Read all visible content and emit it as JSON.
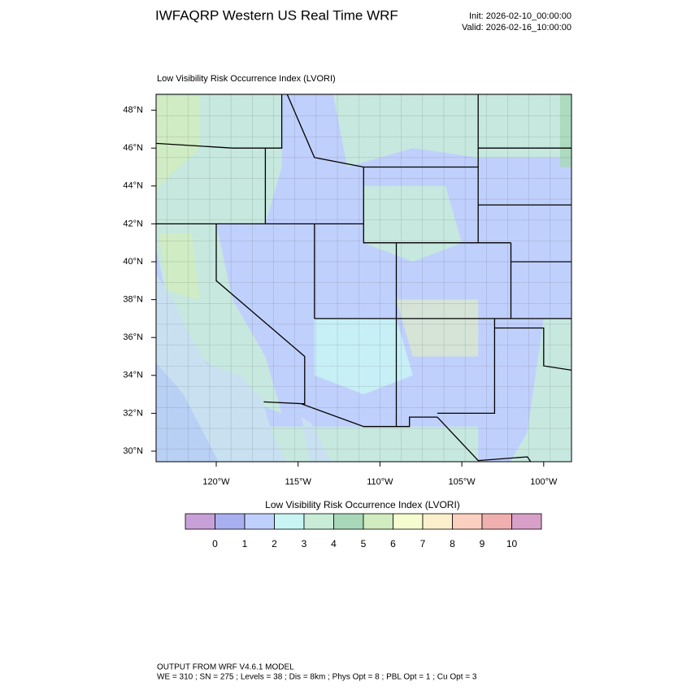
{
  "header": {
    "title": "IWFAQRP Western US Real Time WRF",
    "init": "Init: 2026-02-10_00:00:00",
    "valid": "Valid: 2026-02-16_10:00:00"
  },
  "map": {
    "subtitle": "Low Visibility Risk Occurrence Index   (LVORI)",
    "lat_labels": [
      "48°N",
      "46°N",
      "44°N",
      "42°N",
      "40°N",
      "38°N",
      "36°N",
      "34°N",
      "32°N",
      "30°N"
    ],
    "lon_labels": [
      "120°W",
      "115°W",
      "110°W",
      "105°W",
      "100°W"
    ]
  },
  "colorbar": {
    "title": "Low Visibility Risk Occurrence Index  (LVORI)",
    "levels": [
      0,
      1,
      2,
      3,
      4,
      5,
      6,
      7,
      8,
      9,
      10
    ],
    "colors": [
      "#c8a0d8",
      "#a8b0f0",
      "#c0d0fc",
      "#c8f4f4",
      "#c8ecd8",
      "#a8d8b8",
      "#d0ecc0",
      "#f4fcd0",
      "#fcf0cc",
      "#fcd0c0",
      "#f0b0b0",
      "#d8a0c8"
    ]
  },
  "footer": {
    "line1": "OUTPUT FROM WRF V4.6.1 MODEL",
    "line2": "WE = 310 ; SN = 275 ; Levels = 38 ; Dis = 8km ; Phys Opt = 8 ; PBL Opt = 1 ; Cu Opt = 3"
  }
}
